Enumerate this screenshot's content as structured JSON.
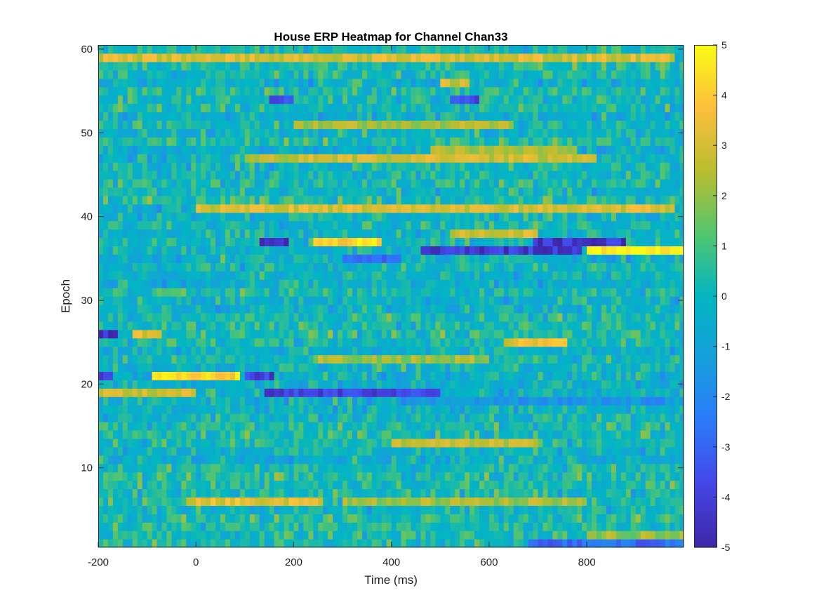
{
  "chart_data": {
    "type": "heatmap",
    "title": "House ERP Heatmap for Channel Chan33",
    "xlabel": "Time (ms)",
    "ylabel": "Epoch",
    "xlim": [
      -200,
      998
    ],
    "ylim": [
      0.5,
      60.5
    ],
    "x_ticks": [
      -200,
      0,
      200,
      400,
      600,
      800
    ],
    "x_tick_labels": [
      "-200",
      "0",
      "200",
      "400",
      "600",
      "800"
    ],
    "y_ticks": [
      10,
      20,
      30,
      40,
      50,
      60
    ],
    "y_tick_labels": [
      "10",
      "20",
      "30",
      "40",
      "50",
      "60"
    ],
    "epochs": 60,
    "time_bins": 120,
    "time_start_ms": -200,
    "time_step_ms": 10,
    "colormap": "parula",
    "color_limits": [
      -5,
      5
    ],
    "colorbar_ticks": [
      5,
      4,
      3,
      2,
      1,
      0,
      -1,
      -2,
      -3,
      -4,
      -5
    ],
    "colorbar_tick_labels": [
      "5",
      "4",
      "3",
      "2",
      "1",
      "0",
      "-1",
      "-2",
      "-3",
      "-4",
      "-5"
    ],
    "grid": false,
    "row_features": [
      {
        "epoch": 59,
        "from_ms": -200,
        "to_ms": 980,
        "value": 3.0
      },
      {
        "epoch": 56,
        "from_ms": 500,
        "to_ms": 560,
        "value": 2.8
      },
      {
        "epoch": 54,
        "from_ms": 150,
        "to_ms": 200,
        "value": -3.8
      },
      {
        "epoch": 54,
        "from_ms": 520,
        "to_ms": 580,
        "value": -3.6
      },
      {
        "epoch": 51,
        "from_ms": 200,
        "to_ms": 650,
        "value": 2.3
      },
      {
        "epoch": 48,
        "from_ms": 480,
        "to_ms": 780,
        "value": 2.5
      },
      {
        "epoch": 47,
        "from_ms": 100,
        "to_ms": 820,
        "value": 2.8
      },
      {
        "epoch": 41,
        "from_ms": 0,
        "to_ms": 980,
        "value": 3.0
      },
      {
        "epoch": 38,
        "from_ms": 520,
        "to_ms": 700,
        "value": 2.8
      },
      {
        "epoch": 37,
        "from_ms": 130,
        "to_ms": 190,
        "value": -4.6
      },
      {
        "epoch": 37,
        "from_ms": 240,
        "to_ms": 380,
        "value": 4.3
      },
      {
        "epoch": 37,
        "from_ms": 690,
        "to_ms": 880,
        "value": -4.3
      },
      {
        "epoch": 36,
        "from_ms": 460,
        "to_ms": 790,
        "value": -4.2
      },
      {
        "epoch": 36,
        "from_ms": 800,
        "to_ms": 998,
        "value": 5.0
      },
      {
        "epoch": 35,
        "from_ms": 300,
        "to_ms": 420,
        "value": -3.0
      },
      {
        "epoch": 26,
        "from_ms": -200,
        "to_ms": -160,
        "value": -4.4
      },
      {
        "epoch": 26,
        "from_ms": -130,
        "to_ms": -70,
        "value": 3.2
      },
      {
        "epoch": 25,
        "from_ms": 630,
        "to_ms": 760,
        "value": 3.3
      },
      {
        "epoch": 23,
        "from_ms": 240,
        "to_ms": 600,
        "value": 2.2
      },
      {
        "epoch": 21,
        "from_ms": -200,
        "to_ms": -170,
        "value": -4.4
      },
      {
        "epoch": 21,
        "from_ms": -90,
        "to_ms": 90,
        "value": 4.2
      },
      {
        "epoch": 21,
        "from_ms": 100,
        "to_ms": 160,
        "value": -4.0
      },
      {
        "epoch": 19,
        "from_ms": -200,
        "to_ms": 0,
        "value": 3.0
      },
      {
        "epoch": 19,
        "from_ms": 140,
        "to_ms": 500,
        "value": -3.9
      },
      {
        "epoch": 18,
        "from_ms": 420,
        "to_ms": 980,
        "value": -1.6
      },
      {
        "epoch": 13,
        "from_ms": 400,
        "to_ms": 700,
        "value": 2.7
      },
      {
        "epoch": 6,
        "from_ms": -20,
        "to_ms": 260,
        "value": 3.3
      },
      {
        "epoch": 6,
        "from_ms": 300,
        "to_ms": 800,
        "value": 2.2
      },
      {
        "epoch": 2,
        "from_ms": 800,
        "to_ms": 998,
        "value": 2.0
      },
      {
        "epoch": 1,
        "from_ms": 680,
        "to_ms": 998,
        "value": -2.8
      }
    ]
  }
}
